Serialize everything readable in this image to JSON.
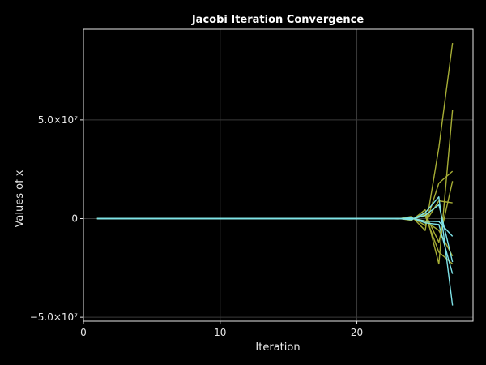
{
  "chart_data": {
    "type": "line",
    "title": "Jacobi Iteration Convergence",
    "xlabel": "Iteration",
    "ylabel": "Values of x",
    "xlim": [
      0,
      28.5
    ],
    "ylim": [
      -52000000,
      96000000
    ],
    "x_ticks": [
      {
        "value": 0,
        "label": "0"
      },
      {
        "value": 10,
        "label": "10"
      },
      {
        "value": 20,
        "label": "20"
      }
    ],
    "y_ticks": [
      {
        "value": -50000000,
        "label": "−5.0×10⁷"
      },
      {
        "value": 0,
        "label": "0"
      },
      {
        "value": 50000000,
        "label": "5.0×10⁷"
      }
    ],
    "grid": true,
    "legend": "none",
    "colors": {
      "background": "#000000",
      "frame": "#e6e6e6",
      "grid": "#3a3a3a",
      "olive": "#a6ad35",
      "cyan": "#7fe3e8"
    },
    "x": [
      1,
      2,
      3,
      4,
      5,
      6,
      7,
      8,
      9,
      10,
      11,
      12,
      13,
      14,
      15,
      16,
      17,
      18,
      19,
      20,
      21,
      22,
      23,
      24,
      25,
      26,
      27
    ],
    "series": [
      {
        "color": "olive",
        "values": [
          0,
          0,
          0,
          0,
          0,
          0,
          0,
          0,
          0,
          0,
          0,
          0,
          0,
          0,
          0,
          0,
          0,
          0,
          0,
          0,
          0,
          20000,
          -150000,
          1100000,
          -6000000,
          36000000,
          89000000
        ]
      },
      {
        "color": "olive",
        "values": [
          0,
          0,
          0,
          0,
          0,
          0,
          0,
          0,
          0,
          0,
          0,
          0,
          0,
          0,
          0,
          0,
          0,
          0,
          0,
          0,
          0,
          -15000,
          120000,
          -900000,
          4500000,
          -23000000,
          55000000
        ]
      },
      {
        "color": "olive",
        "values": [
          0,
          0,
          0,
          0,
          0,
          0,
          0,
          0,
          0,
          0,
          0,
          0,
          0,
          0,
          0,
          0,
          0,
          0,
          0,
          0,
          0,
          10000,
          -90000,
          700000,
          -3500000,
          18000000,
          24000000
        ]
      },
      {
        "color": "olive",
        "values": [
          0,
          0,
          0,
          0,
          0,
          0,
          0,
          0,
          0,
          0,
          0,
          0,
          0,
          0,
          0,
          0,
          0,
          0,
          0,
          0,
          0,
          -8000,
          70000,
          -500000,
          2500000,
          -12000000,
          19000000
        ]
      },
      {
        "color": "olive",
        "values": [
          0,
          0,
          0,
          0,
          0,
          0,
          0,
          0,
          0,
          0,
          0,
          0,
          0,
          0,
          0,
          0,
          0,
          0,
          0,
          0,
          0,
          6000,
          -50000,
          400000,
          -2000000,
          9000000,
          8000000
        ]
      },
      {
        "color": "olive",
        "values": [
          0,
          0,
          0,
          0,
          0,
          0,
          0,
          0,
          0,
          0,
          0,
          0,
          0,
          0,
          0,
          0,
          0,
          0,
          0,
          0,
          0,
          -5000,
          40000,
          -300000,
          1500000,
          -17000000,
          -23000000
        ]
      },
      {
        "color": "olive",
        "values": [
          0,
          0,
          0,
          0,
          0,
          0,
          0,
          0,
          0,
          0,
          0,
          0,
          0,
          0,
          0,
          0,
          0,
          0,
          0,
          0,
          0,
          4000,
          -30000,
          250000,
          -1200000,
          -6000000,
          -19000000
        ]
      },
      {
        "color": "cyan",
        "values": [
          0,
          0,
          0,
          0,
          0,
          0,
          0,
          0,
          0,
          0,
          0,
          0,
          0,
          0,
          0,
          0,
          0,
          0,
          0,
          0,
          0,
          -10000,
          80000,
          -600000,
          3000000,
          11000000,
          -44000000
        ]
      },
      {
        "color": "cyan",
        "values": [
          0,
          0,
          0,
          0,
          0,
          0,
          0,
          0,
          0,
          0,
          0,
          0,
          0,
          0,
          0,
          0,
          0,
          0,
          0,
          0,
          0,
          8000,
          -60000,
          450000,
          -2200000,
          -3000000,
          -28000000
        ]
      },
      {
        "color": "cyan",
        "values": [
          0,
          0,
          0,
          0,
          0,
          0,
          0,
          0,
          0,
          0,
          0,
          0,
          0,
          0,
          0,
          0,
          0,
          0,
          0,
          0,
          0,
          -6000,
          45000,
          -350000,
          1700000,
          7000000,
          -22000000
        ]
      },
      {
        "color": "cyan",
        "values": [
          0,
          0,
          0,
          0,
          0,
          0,
          0,
          0,
          0,
          0,
          0,
          0,
          0,
          0,
          0,
          0,
          0,
          0,
          0,
          0,
          0,
          5000,
          -35000,
          280000,
          -1300000,
          -1500000,
          -9000000
        ]
      }
    ]
  }
}
